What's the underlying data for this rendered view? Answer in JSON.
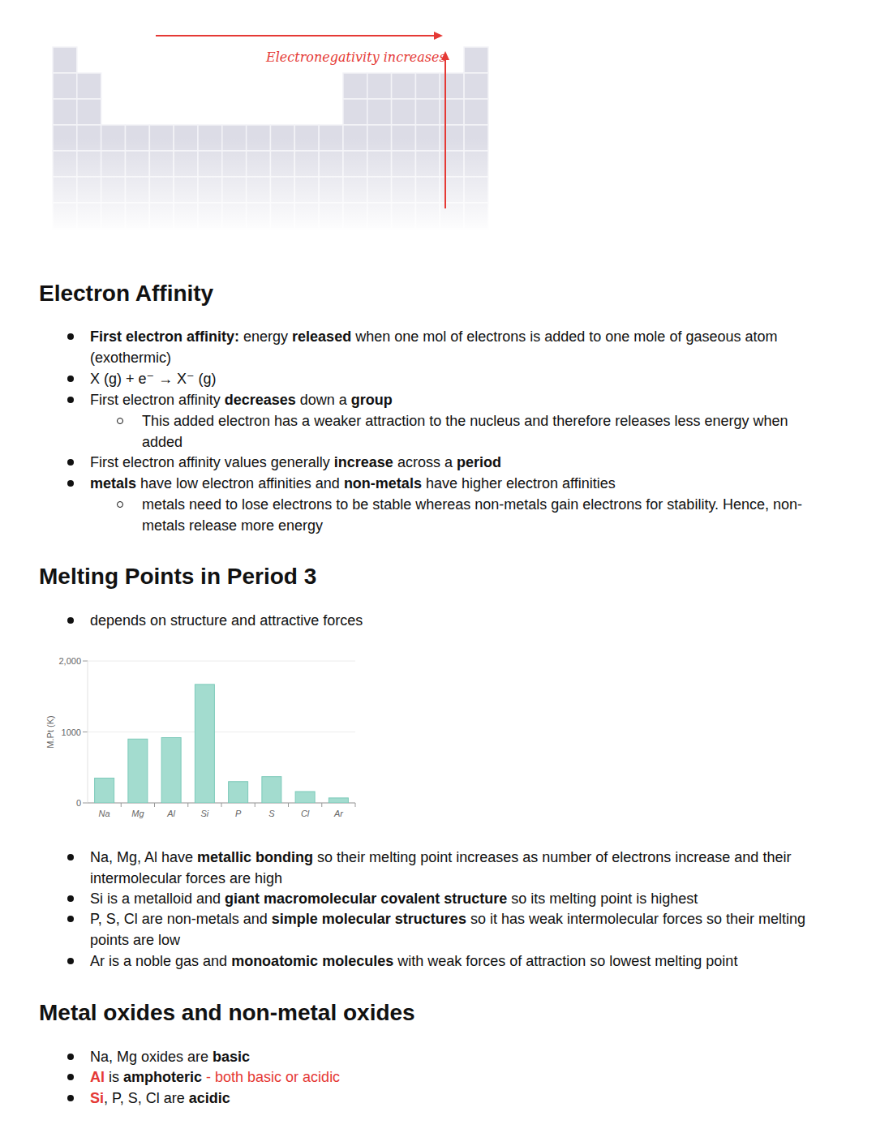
{
  "diagram": {
    "arrow_label": "Electronegativity increases"
  },
  "sections": [
    {
      "title": "Electron Affinity",
      "bullets": [
        {
          "segments": [
            {
              "text": "First electron affinity:",
              "bold": true
            },
            {
              "text": " energy "
            },
            {
              "text": "released",
              "bold": true
            },
            {
              "text": " when one mol of electrons is added to one mole of gaseous atom (exothermic)"
            }
          ]
        },
        {
          "segments": [
            {
              "text": "X (g) + e⁻ → X⁻ (g)"
            }
          ]
        },
        {
          "segments": [
            {
              "text": "First electron affinity "
            },
            {
              "text": "decreases",
              "bold": true
            },
            {
              "text": " down a "
            },
            {
              "text": "group",
              "bold": true
            }
          ],
          "sub": [
            {
              "segments": [
                {
                  "text": "This added electron has a weaker attraction to the nucleus and therefore releases less energy when added"
                }
              ]
            }
          ]
        },
        {
          "segments": [
            {
              "text": "First electron affinity values generally "
            },
            {
              "text": "increase",
              "bold": true
            },
            {
              "text": " across a "
            },
            {
              "text": "period",
              "bold": true
            }
          ]
        },
        {
          "segments": [
            {
              "text": "metals",
              "bold": true
            },
            {
              "text": " have low electron affinities and "
            },
            {
              "text": "non-metals",
              "bold": true
            },
            {
              "text": " have higher electron affinities"
            }
          ],
          "sub": [
            {
              "segments": [
                {
                  "text": "metals need to lose electrons to be stable whereas non-metals gain electrons for stability. Hence, non-metals release more energy"
                }
              ]
            }
          ]
        }
      ]
    },
    {
      "title": "Melting Points in Period 3",
      "bullets": [
        {
          "segments": [
            {
              "text": "depends on structure and attractive forces"
            }
          ]
        }
      ],
      "bullets_after_chart": [
        {
          "segments": [
            {
              "text": "Na, Mg, Al have "
            },
            {
              "text": "metallic bonding",
              "bold": true
            },
            {
              "text": " so their melting point increases as number of electrons increase and their intermolecular forces are high"
            }
          ]
        },
        {
          "segments": [
            {
              "text": "Si is a metalloid and "
            },
            {
              "text": "giant macromolecular covalent structure",
              "bold": true
            },
            {
              "text": " so its melting point is highest"
            }
          ]
        },
        {
          "segments": [
            {
              "text": "P, S, Cl are non-metals and "
            },
            {
              "text": "simple molecular structures",
              "bold": true
            },
            {
              "text": " so it has weak intermolecular forces so their melting points are low"
            }
          ]
        },
        {
          "segments": [
            {
              "text": "Ar is a noble gas and "
            },
            {
              "text": "monoatomic molecules",
              "bold": true
            },
            {
              "text": " with weak forces of attraction so lowest melting point"
            }
          ]
        }
      ]
    },
    {
      "title": "Metal oxides and non-metal oxides",
      "bullets": [
        {
          "segments": [
            {
              "text": "Na, Mg oxides are "
            },
            {
              "text": "basic",
              "bold": true
            }
          ]
        },
        {
          "segments": [
            {
              "text": "Al",
              "bold": true,
              "color": "#e53935"
            },
            {
              "text": " is "
            },
            {
              "text": "amphoteric",
              "bold": true
            },
            {
              "text": " - both basic or acidic",
              "color": "#e53935"
            }
          ]
        },
        {
          "segments": [
            {
              "text": "Si",
              "bold": true,
              "color": "#e53935"
            },
            {
              "text": ", P, S, Cl are "
            },
            {
              "text": "acidic",
              "bold": true
            }
          ]
        }
      ]
    }
  ],
  "chart_data": {
    "type": "bar",
    "ylabel": "M.Pt (K)",
    "categories": [
      "Na",
      "Mg",
      "Al",
      "Si",
      "P",
      "S",
      "Cl",
      "Ar"
    ],
    "values": [
      350,
      900,
      920,
      1670,
      300,
      370,
      160,
      70
    ],
    "color": "#a3dccf",
    "ylim": [
      0,
      2000
    ],
    "yticks": [
      0,
      1000,
      {
        "value": 2000,
        "label": "2,000"
      }
    ],
    "grid": true
  }
}
